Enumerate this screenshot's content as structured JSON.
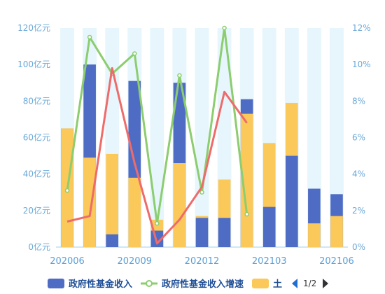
{
  "chart_data": {
    "type": "bar",
    "categories": [
      "202006",
      "202007",
      "202008",
      "202009",
      "202010",
      "202011",
      "202012",
      "202101",
      "202102",
      "202103",
      "202104",
      "202105",
      "202106"
    ],
    "x_tick_labels": [
      "202006",
      "202009",
      "202012",
      "202103",
      "202106"
    ],
    "y_left": {
      "ylim": [
        0,
        120
      ],
      "ticks": [
        "0亿元",
        "20亿元",
        "40亿元",
        "60亿元",
        "80亿元",
        "100亿元",
        "120亿元"
      ]
    },
    "y_right": {
      "ylim": [
        0,
        12
      ],
      "ticks": [
        "0%",
        "2%",
        "4%",
        "6%",
        "8%",
        "10%",
        "12%"
      ]
    },
    "series": [
      {
        "name": "政府性基金收入",
        "kind": "bar",
        "axis": "left",
        "color": "#4f6cc4",
        "values": [
          65,
          100,
          7,
          91,
          9,
          90,
          16,
          16,
          81,
          22,
          50,
          32,
          29
        ]
      },
      {
        "name": "土",
        "kind": "bar",
        "axis": "left",
        "color": "#fbc85a",
        "values": [
          65,
          49,
          51,
          38,
          15,
          46,
          17,
          37,
          73,
          57,
          79,
          13,
          17
        ]
      },
      {
        "name": "政府性基金收入增速",
        "kind": "line",
        "axis": "right",
        "color": "#8ccd6f",
        "values": [
          3.1,
          11.5,
          9.5,
          10.6,
          1.3,
          9.4,
          3.0,
          12.0,
          1.8,
          null,
          null,
          null,
          null
        ]
      },
      {
        "kind": "line",
        "axis": "right",
        "color": "#ee6b6b",
        "in_legend": false,
        "values": [
          1.4,
          1.7,
          9.8,
          4.6,
          0.2,
          1.5,
          3.3,
          8.5,
          6.8,
          null,
          null,
          null,
          null
        ]
      }
    ],
    "background_band_color": "#e6f6fc",
    "grid": false,
    "legend": {
      "position": "bottom",
      "items": [
        {
          "name": "政府性基金收入",
          "symbol": "rect",
          "color": "#4f6cc4"
        },
        {
          "name": "政府性基金收入增速",
          "symbol": "line-dot",
          "color": "#8ccd6f"
        },
        {
          "name": "土",
          "symbol": "rect",
          "color": "#fbc85a"
        }
      ],
      "pager": {
        "label": "1/2",
        "prev_icon": "caret-left-icon",
        "next_icon": "caret-right-icon",
        "prev_color": "#1f6fd1",
        "next_color": "#333333"
      }
    }
  }
}
